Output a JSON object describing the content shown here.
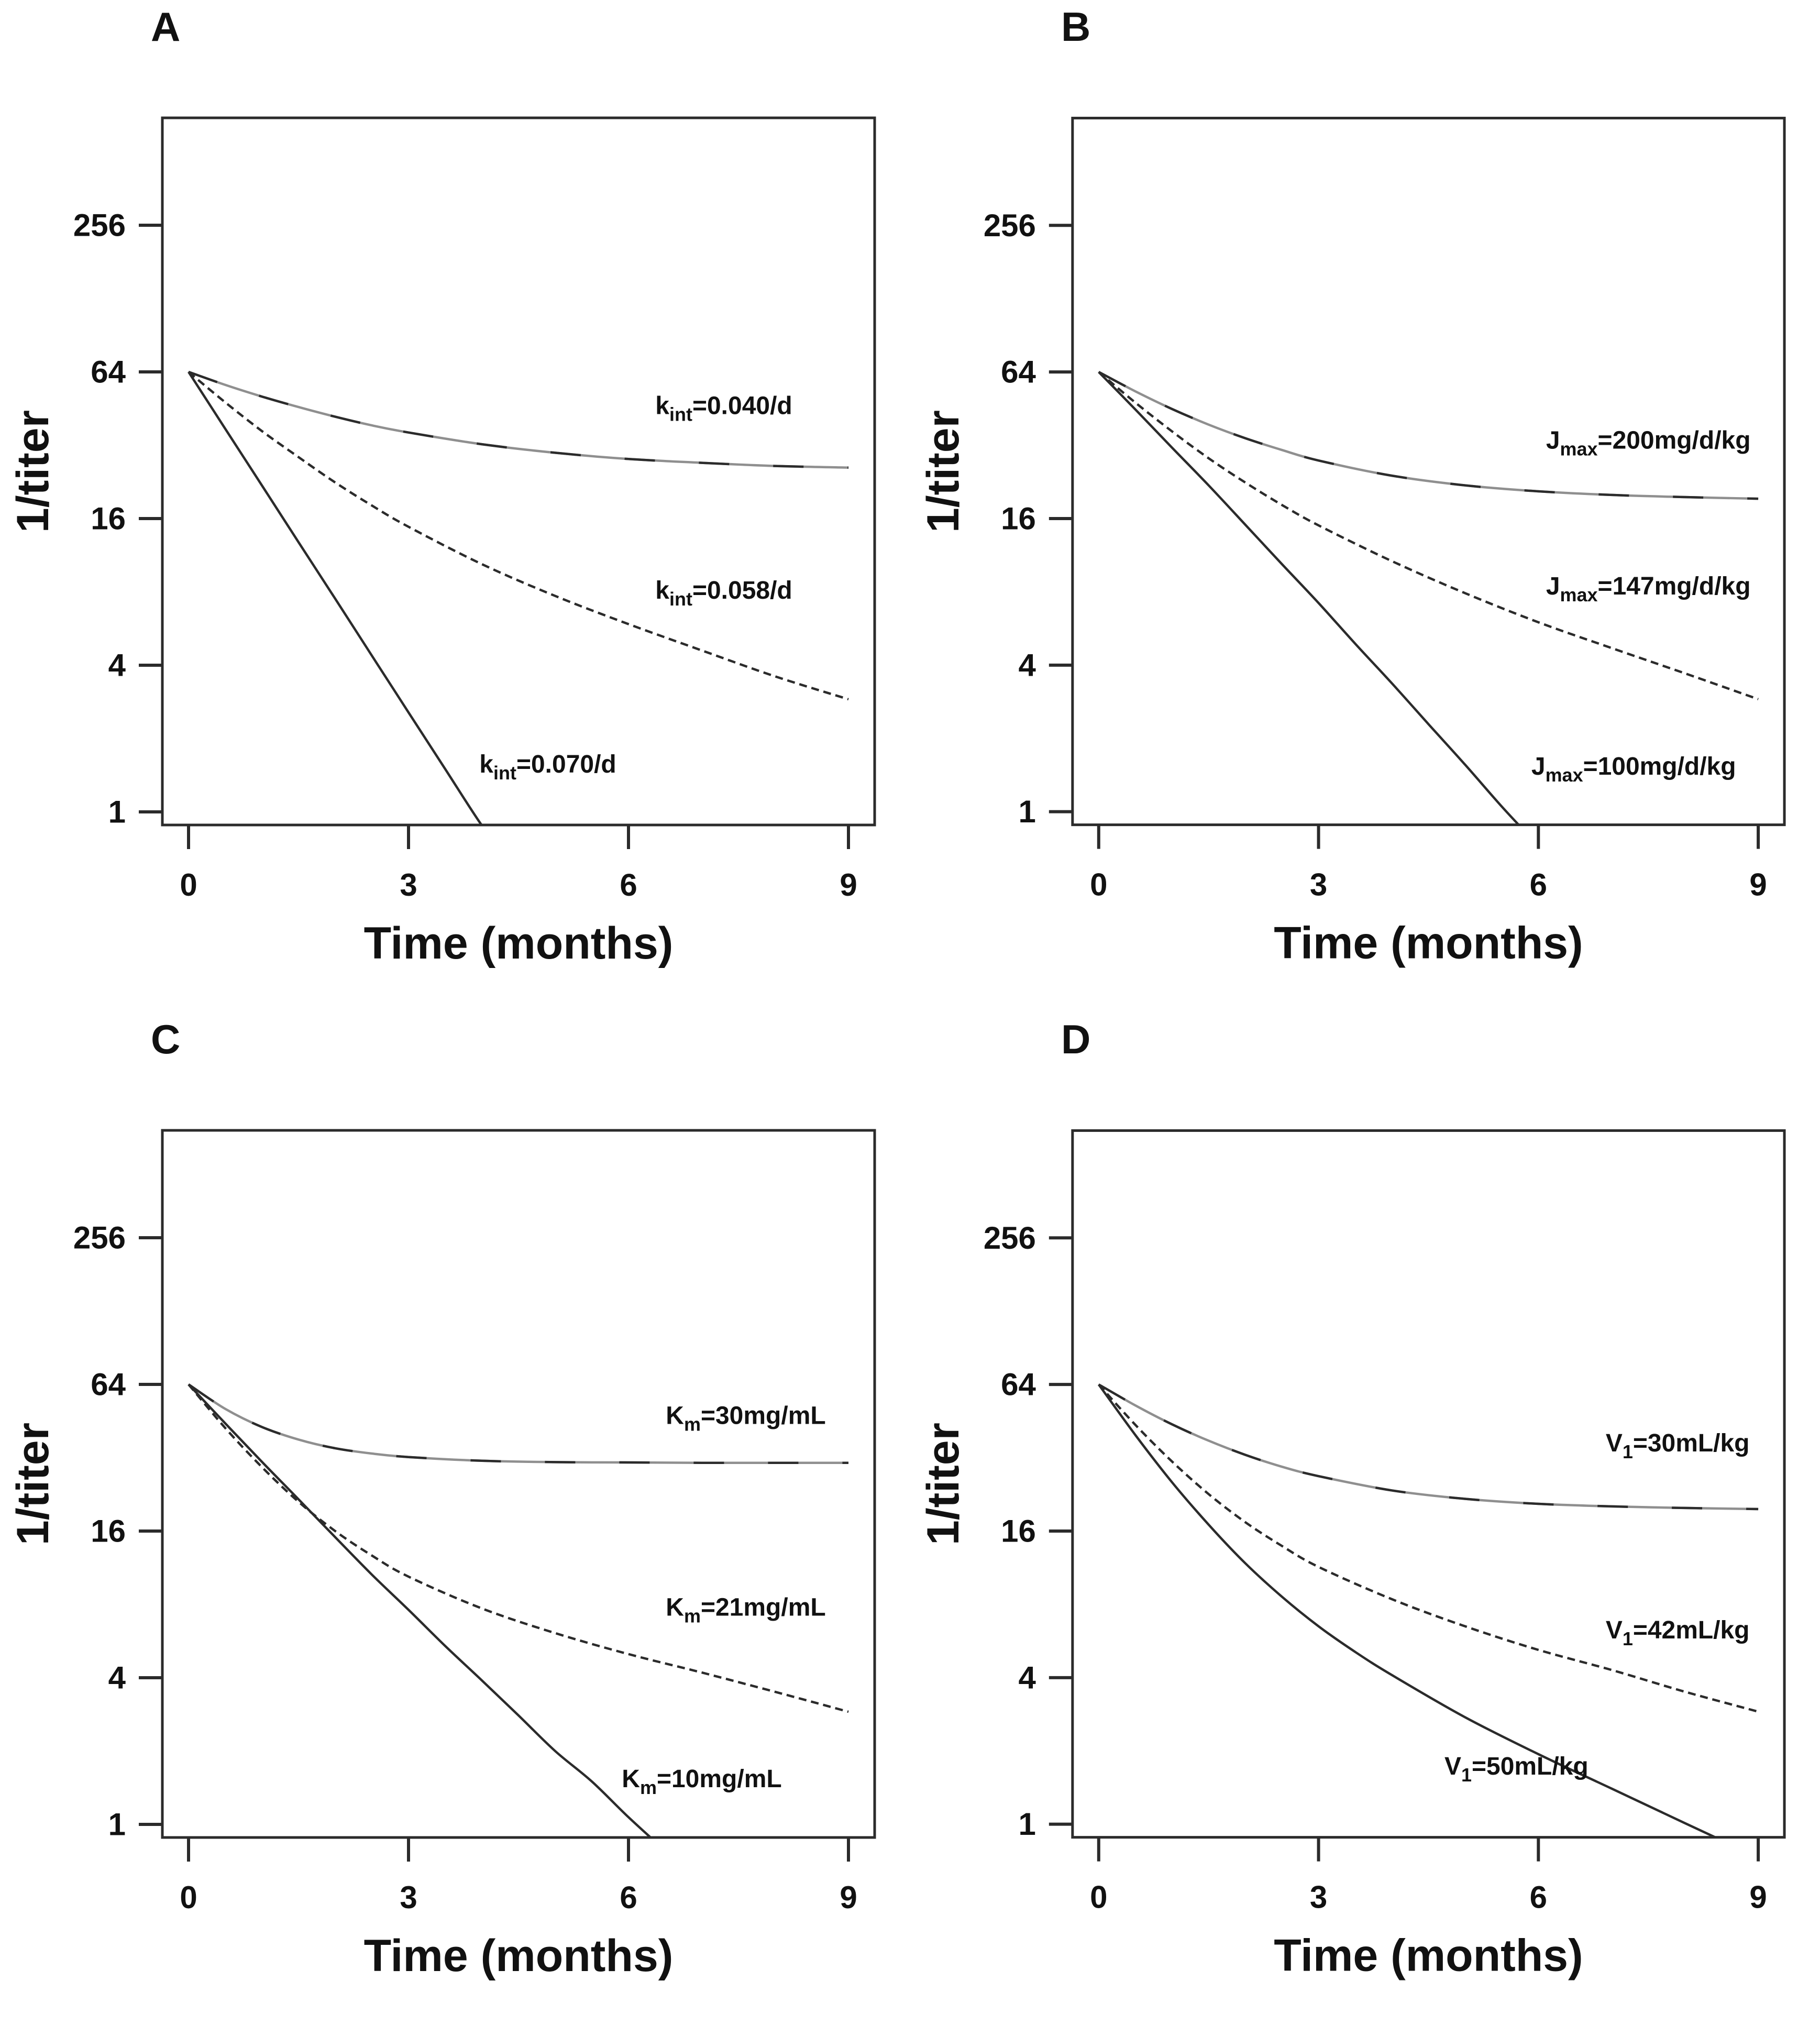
{
  "figure": {
    "description": "Four-panel simulation figure of 1/titer decline over time under varying pharmacokinetic parameters",
    "background_color": "#ffffff",
    "line_color": "#2b2b2b",
    "overlay_gray": "#8f8f8f",
    "text_color": "#111111"
  },
  "chart_data": {
    "type": "line",
    "x_axis": {
      "label": "Time (months)",
      "ticks": [
        "0",
        "3",
        "6",
        "9"
      ],
      "range_months": [
        -0.36,
        9.43
      ]
    },
    "y_axis": {
      "label": "1/titer",
      "scale": "log2",
      "ticks": [
        "256",
        "64",
        "16",
        "4",
        "1"
      ],
      "range": [
        0.88,
        700
      ]
    },
    "panels": [
      {
        "letter": "A",
        "parameter": "k_int",
        "series": [
          {
            "full_label": "kint=0.040/d",
            "label_parts": {
              "pre": "k",
              "sub": "int",
              "post": "=0.040/d"
            },
            "label_at": [
              7.3,
              43
            ],
            "line_style": "mixed",
            "points": [
              [
                0,
                64
              ],
              [
                0.5,
                56.6
              ],
              [
                1,
                50.7
              ],
              [
                1.5,
                45.9
              ],
              [
                2,
                41.9
              ],
              [
                2.5,
                38.6
              ],
              [
                3,
                36.1
              ],
              [
                4,
                32.3
              ],
              [
                5,
                29.8
              ],
              [
                6,
                28.1
              ],
              [
                7,
                27.1
              ],
              [
                8,
                26.3
              ],
              [
                9,
                25.9
              ]
            ]
          },
          {
            "full_label": "kint=0.058/d",
            "label_parts": {
              "pre": "k",
              "sub": "int",
              "post": "=0.058/d"
            },
            "label_at": [
              7.3,
              7.5
            ],
            "line_style": "dashed",
            "points": [
              [
                0,
                64
              ],
              [
                0.5,
                48.0
              ],
              [
                1,
                36.6
              ],
              [
                1.5,
                28.6
              ],
              [
                2,
                22.5
              ],
              [
                2.5,
                18.1
              ],
              [
                3,
                14.8
              ],
              [
                4,
                10.4
              ],
              [
                5,
                7.7
              ],
              [
                6,
                5.9
              ],
              [
                7,
                4.6
              ],
              [
                8,
                3.6
              ],
              [
                9,
                2.9
              ]
            ]
          },
          {
            "full_label": "kint=0.070/d",
            "label_parts": {
              "pre": "k",
              "sub": "int",
              "post": "=0.070/d"
            },
            "label_at": [
              4.9,
              1.45
            ],
            "line_style": "solid",
            "points": [
              [
                0,
                64
              ],
              [
                0.5,
                37.4
              ],
              [
                1,
                21.9
              ],
              [
                1.5,
                12.8
              ],
              [
                2,
                7.5
              ],
              [
                2.5,
                4.38
              ],
              [
                3,
                2.56
              ],
              [
                3.5,
                1.5
              ],
              [
                4,
                0.88
              ],
              [
                4.2,
                0.76
              ]
            ]
          }
        ]
      },
      {
        "letter": "B",
        "parameter": "J_max",
        "series": [
          {
            "full_label": "Jmax=200mg/d/kg",
            "label_parts": {
              "pre": "J",
              "sub": "max",
              "post": "=200mg/d/kg"
            },
            "label_at": [
              7.5,
              31
            ],
            "line_style": "mixed",
            "points": [
              [
                0,
                64
              ],
              [
                0.5,
                53.3
              ],
              [
                1,
                45.1
              ],
              [
                1.5,
                38.9
              ],
              [
                2,
                34.2
              ],
              [
                2.5,
                30.6
              ],
              [
                3,
                27.7
              ],
              [
                4,
                24.0
              ],
              [
                5,
                21.9
              ],
              [
                6,
                20.7
              ],
              [
                7,
                20.0
              ],
              [
                8,
                19.6
              ],
              [
                9,
                19.3
              ]
            ]
          },
          {
            "full_label": "Jmax=147mg/d/kg",
            "label_parts": {
              "pre": "J",
              "sub": "max",
              "post": "=147mg/d/kg"
            },
            "label_at": [
              7.5,
              7.8
            ],
            "line_style": "dashed",
            "points": [
              [
                0,
                64
              ],
              [
                0.5,
                47.9
              ],
              [
                1,
                36.5
              ],
              [
                1.5,
                28.3
              ],
              [
                2,
                22.5
              ],
              [
                2.5,
                18.2
              ],
              [
                3,
                15.0
              ],
              [
                4,
                10.7
              ],
              [
                5,
                7.9
              ],
              [
                6,
                6.0
              ],
              [
                7,
                4.7
              ],
              [
                8,
                3.7
              ],
              [
                9,
                2.9
              ]
            ]
          },
          {
            "full_label": "Jmax=100mg/d/kg",
            "label_parts": {
              "pre": "J",
              "sub": "max",
              "post": "=100mg/d/kg"
            },
            "label_at": [
              7.3,
              1.42
            ],
            "line_style": "solid",
            "points": [
              [
                0,
                64
              ],
              [
                0.5,
                44.9
              ],
              [
                1,
                31.3
              ],
              [
                1.5,
                21.9
              ],
              [
                2,
                15.1
              ],
              [
                2.5,
                10.4
              ],
              [
                3,
                7.2
              ],
              [
                3.5,
                4.9
              ],
              [
                4,
                3.37
              ],
              [
                4.5,
                2.29
              ],
              [
                5,
                1.56
              ],
              [
                5.5,
                1.05
              ],
              [
                5.9,
                0.78
              ]
            ]
          }
        ]
      },
      {
        "letter": "C",
        "parameter": "K_m",
        "series": [
          {
            "full_label": "Km=30mg/mL",
            "label_parts": {
              "pre": "K",
              "sub": "m",
              "post": "=30mg/mL"
            },
            "label_at": [
              7.6,
              44
            ],
            "line_style": "mixed",
            "points": [
              [
                0,
                64
              ],
              [
                0.5,
                50.8
              ],
              [
                1,
                42.8
              ],
              [
                1.5,
                38.0
              ],
              [
                2,
                35.0
              ],
              [
                2.5,
                33.3
              ],
              [
                3,
                32.2
              ],
              [
                4,
                31.1
              ],
              [
                5,
                30.7
              ],
              [
                6,
                30.6
              ],
              [
                7,
                30.5
              ],
              [
                8,
                30.5
              ],
              [
                9,
                30.5
              ]
            ]
          },
          {
            "full_label": "Km=21mg/mL",
            "label_parts": {
              "pre": "K",
              "sub": "m",
              "post": "=21mg/mL"
            },
            "label_at": [
              7.6,
              7.2
            ],
            "line_style": "dashed",
            "points": [
              [
                0,
                64
              ],
              [
                0.5,
                42.4
              ],
              [
                1,
                29.3
              ],
              [
                1.5,
                21.1
              ],
              [
                2,
                16.0
              ],
              [
                2.5,
                12.7
              ],
              [
                3,
                10.4
              ],
              [
                4,
                7.7
              ],
              [
                5,
                6.1
              ],
              [
                6,
                5.0
              ],
              [
                7,
                4.2
              ],
              [
                8,
                3.5
              ],
              [
                9,
                2.9
              ]
            ]
          },
          {
            "full_label": "Km=10mg/mL",
            "label_parts": {
              "pre": "K",
              "sub": "m",
              "post": "=10mg/mL"
            },
            "label_at": [
              7.0,
              1.42
            ],
            "line_style": "solid",
            "points": [
              [
                0,
                64
              ],
              [
                0.5,
                44.3
              ],
              [
                1,
                30.8
              ],
              [
                1.5,
                21.6
              ],
              [
                2,
                15.1
              ],
              [
                2.5,
                10.6
              ],
              [
                3,
                7.6
              ],
              [
                3.5,
                5.4
              ],
              [
                4,
                3.9
              ],
              [
                4.5,
                2.8
              ],
              [
                5,
                2.0
              ],
              [
                5.5,
                1.5
              ],
              [
                6,
                1.07
              ],
              [
                6.5,
                0.78
              ]
            ]
          }
        ]
      },
      {
        "letter": "D",
        "parameter": "V_1",
        "series": [
          {
            "full_label": "V1=30mL/kg",
            "label_parts": {
              "pre": "V",
              "sub": "1",
              "post": "=30mL/kg"
            },
            "label_at": [
              7.9,
              34
            ],
            "line_style": "mixed",
            "points": [
              [
                0,
                64
              ],
              [
                0.5,
                52.5
              ],
              [
                1,
                43.9
              ],
              [
                1.5,
                37.6
              ],
              [
                2,
                32.9
              ],
              [
                2.5,
                29.4
              ],
              [
                3,
                26.9
              ],
              [
                4,
                23.5
              ],
              [
                5,
                21.7
              ],
              [
                6,
                20.7
              ],
              [
                7,
                20.2
              ],
              [
                8,
                19.9
              ],
              [
                9,
                19.7
              ]
            ]
          },
          {
            "full_label": "V1=42mL/kg",
            "label_parts": {
              "pre": "V",
              "sub": "1",
              "post": "=42mL/kg"
            },
            "label_at": [
              7.9,
              5.8
            ],
            "line_style": "dashed",
            "points": [
              [
                0,
                64
              ],
              [
                0.5,
                43.7
              ],
              [
                1,
                30.9
              ],
              [
                1.5,
                22.7
              ],
              [
                2,
                17.4
              ],
              [
                2.5,
                13.9
              ],
              [
                3,
                11.4
              ],
              [
                4,
                8.4
              ],
              [
                5,
                6.5
              ],
              [
                6,
                5.2
              ],
              [
                7,
                4.3
              ],
              [
                8,
                3.5
              ],
              [
                9,
                2.9
              ]
            ]
          },
          {
            "full_label": "V1=50mL/kg",
            "label_parts": {
              "pre": "V",
              "sub": "1",
              "post": "=50mL/kg"
            },
            "label_at": [
              5.7,
              1.6
            ],
            "line_style": "solid",
            "points": [
              [
                0,
                64
              ],
              [
                0.5,
                39.7
              ],
              [
                1,
                25.4
              ],
              [
                1.5,
                17.0
              ],
              [
                2,
                11.8
              ],
              [
                2.5,
                8.6
              ],
              [
                3,
                6.5
              ],
              [
                3.5,
                5.1
              ],
              [
                4,
                4.1
              ],
              [
                5,
                2.75
              ],
              [
                6,
                1.94
              ],
              [
                7,
                1.4
              ],
              [
                8,
                1.01
              ],
              [
                8.8,
                0.78
              ]
            ]
          }
        ]
      }
    ]
  }
}
